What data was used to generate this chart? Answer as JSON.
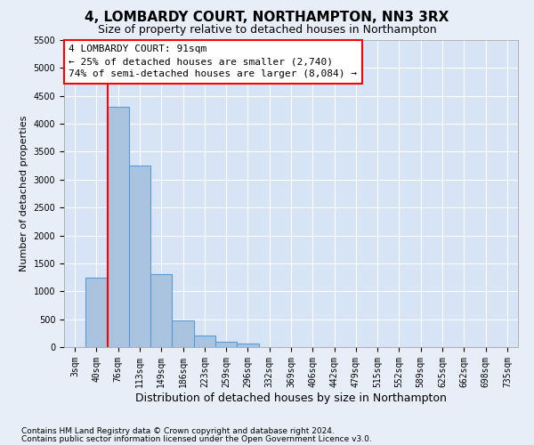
{
  "title": "4, LOMBARDY COURT, NORTHAMPTON, NN3 3RX",
  "subtitle": "Size of property relative to detached houses in Northampton",
  "xlabel": "Distribution of detached houses by size in Northampton",
  "ylabel": "Number of detached properties",
  "footnote1": "Contains HM Land Registry data © Crown copyright and database right 2024.",
  "footnote2": "Contains public sector information licensed under the Open Government Licence v3.0.",
  "bar_labels": [
    "3sqm",
    "40sqm",
    "76sqm",
    "113sqm",
    "149sqm",
    "186sqm",
    "223sqm",
    "259sqm",
    "296sqm",
    "332sqm",
    "369sqm",
    "406sqm",
    "442sqm",
    "479sqm",
    "515sqm",
    "552sqm",
    "589sqm",
    "625sqm",
    "662sqm",
    "698sqm",
    "735sqm"
  ],
  "bar_values": [
    0,
    1250,
    4300,
    3250,
    1300,
    480,
    200,
    100,
    70,
    0,
    0,
    0,
    0,
    0,
    0,
    0,
    0,
    0,
    0,
    0,
    0
  ],
  "bar_color": "#aac4e0",
  "bar_edge_color": "#5b9bd5",
  "vline_color": "red",
  "vline_x_index": 2,
  "annotation_text": "4 LOMBARDY COURT: 91sqm\n← 25% of detached houses are smaller (2,740)\n74% of semi-detached houses are larger (8,084) →",
  "annotation_box_color": "white",
  "annotation_box_edge": "red",
  "ylim": [
    0,
    5500
  ],
  "yticks": [
    0,
    500,
    1000,
    1500,
    2000,
    2500,
    3000,
    3500,
    4000,
    4500,
    5000,
    5500
  ],
  "background_color": "#e8eef7",
  "plot_background": "#d6e4f5",
  "grid_color": "white",
  "title_fontsize": 11,
  "subtitle_fontsize": 9,
  "xlabel_fontsize": 9,
  "ylabel_fontsize": 8,
  "tick_fontsize": 7,
  "annot_fontsize": 8,
  "footnote_fontsize": 6.5
}
